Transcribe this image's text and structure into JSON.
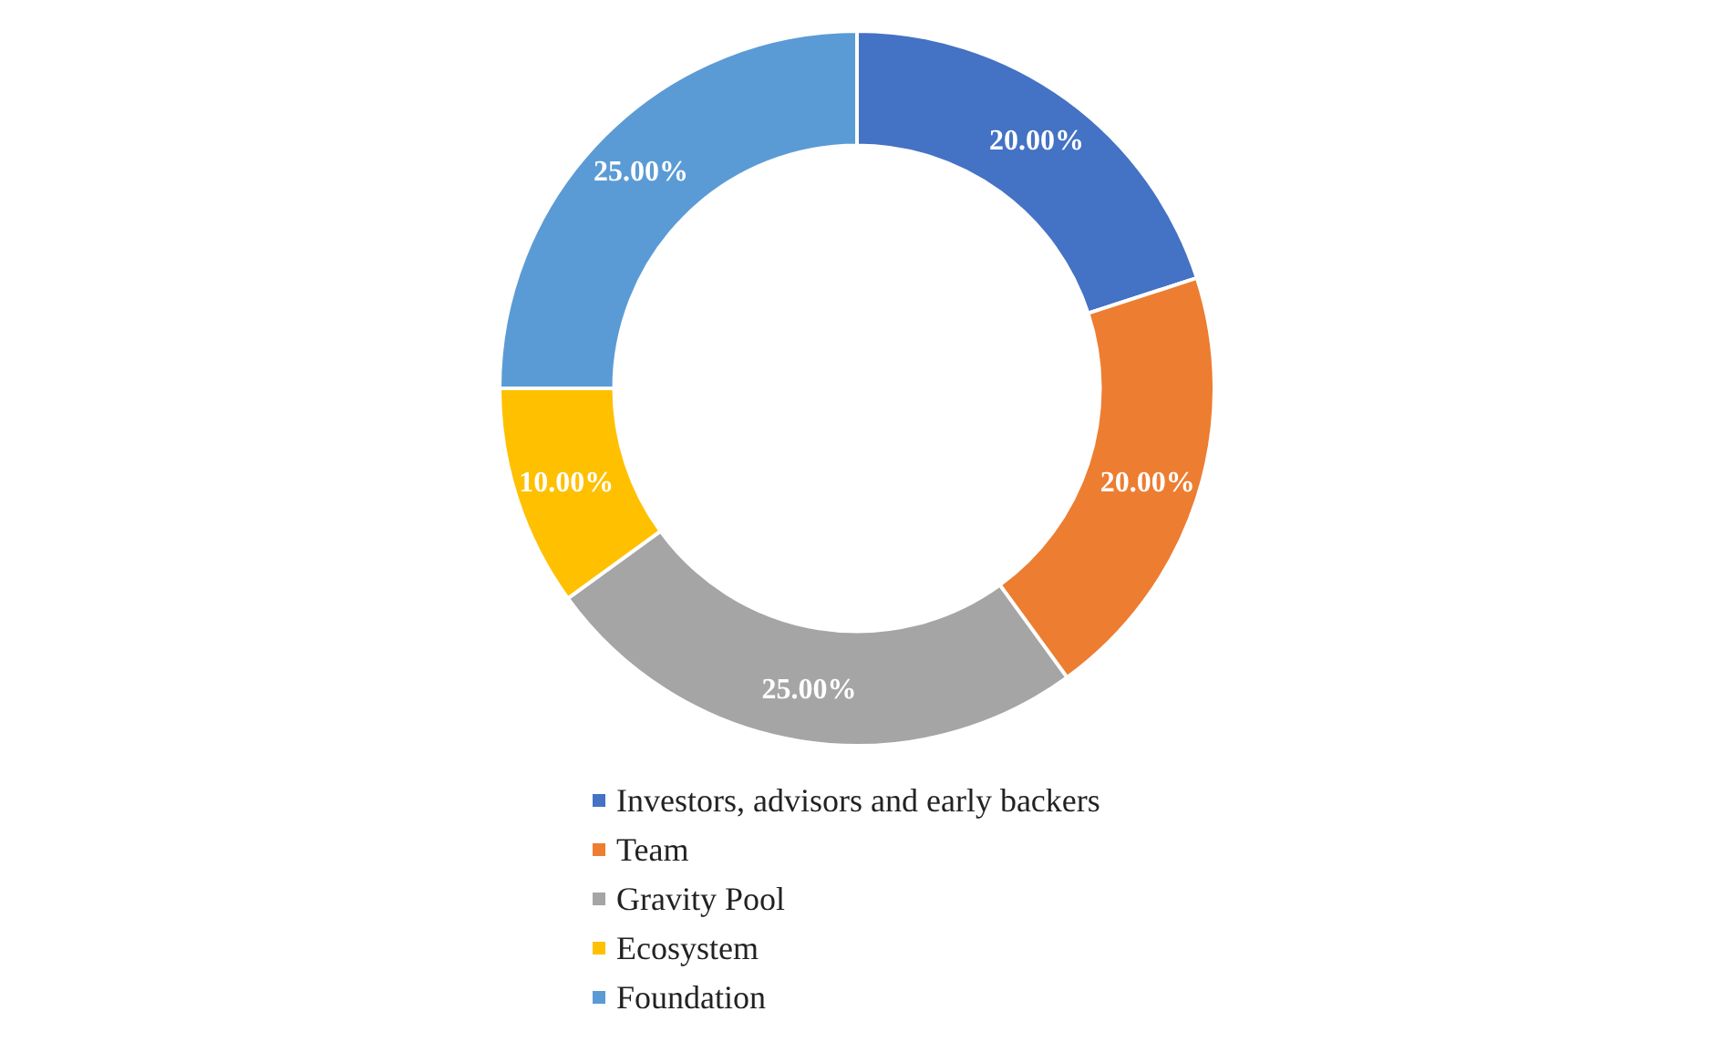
{
  "chart_data": {
    "type": "donut",
    "categories": [
      "Investors, advisors and early backers",
      "Team",
      "Gravity Pool",
      "Ecosystem",
      "Foundation"
    ],
    "values": [
      20,
      20,
      25,
      10,
      25
    ],
    "colors": [
      "#4472c4",
      "#ed7d31",
      "#a5a5a5",
      "#ffc000",
      "#5b9bd5"
    ],
    "value_labels": [
      "20.00%",
      "20.00%",
      "25.00%",
      "10.00%",
      "25.00%"
    ],
    "legend": "bottom"
  }
}
